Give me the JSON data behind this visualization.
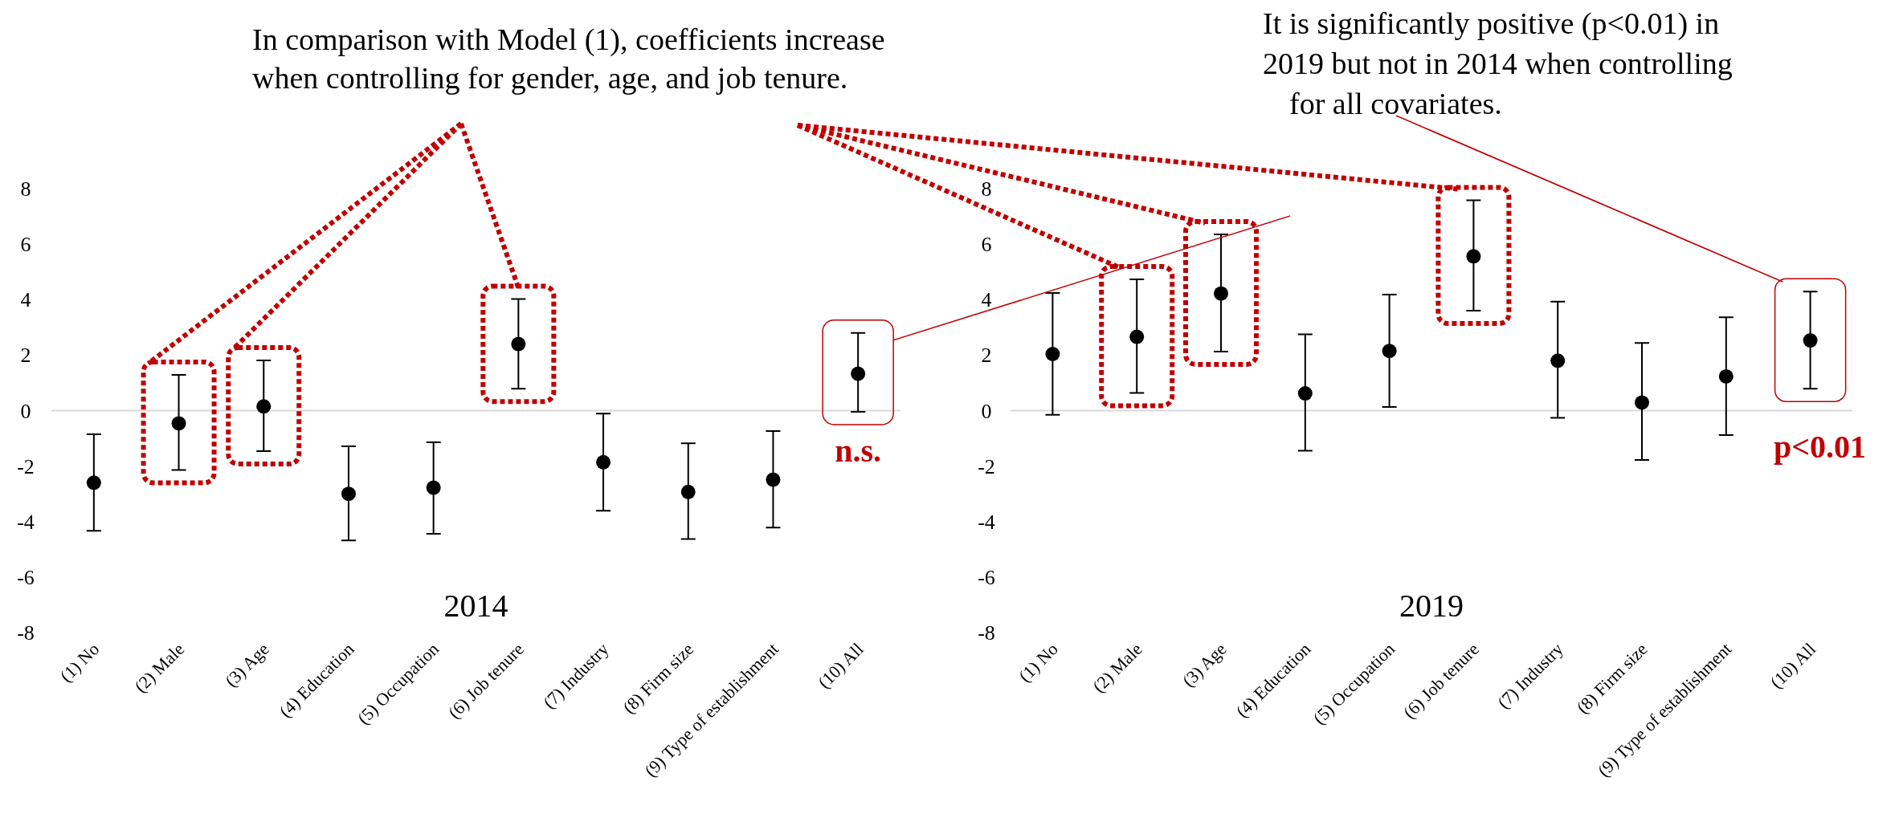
{
  "chart_data": [
    {
      "type": "scatter",
      "title": "2014",
      "categories": [
        "(1) No",
        "(2) Male",
        "(3) Age",
        "(4) Education",
        "(5) Occupation",
        "(6) Job tenure",
        "(7) Industry",
        "(8) Firm size",
        "(9) Type of establishment",
        "(10) All"
      ],
      "values": [
        -2.6,
        -0.46,
        0.15,
        -3.0,
        -2.78,
        2.4,
        -1.86,
        -2.93,
        -2.49,
        1.33
      ],
      "errors": [
        [
          -4.33,
          -0.85
        ],
        [
          -2.14,
          1.29
        ],
        [
          -1.46,
          1.81
        ],
        [
          -4.68,
          -1.29
        ],
        [
          -4.44,
          -1.14
        ],
        [
          0.79,
          4.02
        ],
        [
          -3.61,
          -0.11
        ],
        [
          -4.63,
          -1.18
        ],
        [
          -4.22,
          -0.74
        ],
        [
          -0.04,
          2.8
        ]
      ],
      "color": "#000000",
      "marker": "circle",
      "ylim": [
        -8,
        8
      ],
      "yticks": [
        -8,
        -6,
        -4,
        -2,
        0,
        2,
        4,
        6,
        8
      ],
      "ref_lines": [
        {
          "axis": "y",
          "value": 0,
          "color": "#d9d9d9"
        }
      ],
      "annotations": [
        "In comparison with Model (1), coefficients increase\nwhen controlling for gender, age, and job tenure.",
        "n.s."
      ]
    },
    {
      "type": "scatter",
      "title": "2019",
      "categories": [
        "(1) No",
        "(2) Male",
        "(3) Age",
        "(4) Education",
        "(5) Occupation",
        "(6) Job tenure",
        "(7) Industry",
        "(8) Firm size",
        "(9) Type of establishment",
        "(10) All"
      ],
      "values": [
        2.04,
        2.66,
        4.22,
        0.62,
        2.15,
        5.56,
        1.8,
        0.29,
        1.23,
        2.53
      ],
      "errors": [
        [
          -0.15,
          4.24
        ],
        [
          0.64,
          4.73
        ],
        [
          2.13,
          6.35
        ],
        [
          -1.45,
          2.75
        ],
        [
          0.13,
          4.18
        ],
        [
          3.6,
          7.58
        ],
        [
          -0.26,
          3.93
        ],
        [
          -1.78,
          2.44
        ],
        [
          -0.88,
          3.36
        ],
        [
          0.79,
          4.29
        ]
      ],
      "color": "#000000",
      "marker": "circle",
      "ylim": [
        -8,
        8
      ],
      "yticks": [
        -8,
        -6,
        -4,
        -2,
        0,
        2,
        4,
        6,
        8
      ],
      "ref_lines": [
        {
          "axis": "y",
          "value": 0,
          "color": "#d9d9d9"
        }
      ],
      "annotations": [
        "It is significantly positive (p<0.01) in\n2019 but not in 2014 when controlling\nfor all covariates.",
        "p<0.01"
      ]
    }
  ]
}
